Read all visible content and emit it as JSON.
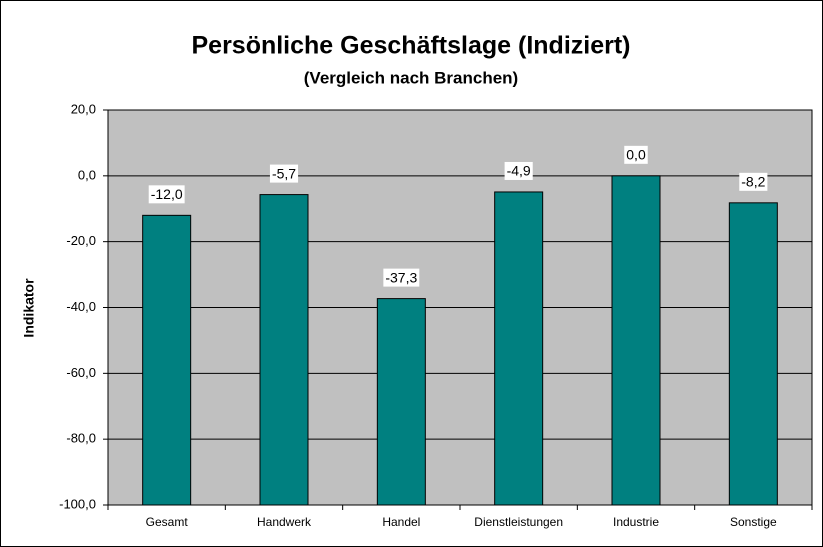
{
  "chart_data": {
    "type": "bar",
    "title": "Persönliche Geschäftslage (Indiziert)",
    "subtitle": "(Vergleich nach Branchen)",
    "y_label": "Indikator",
    "categories": [
      "Gesamt",
      "Handwerk",
      "Handel",
      "Dienstleistungen",
      "Industrie",
      "Sonstige"
    ],
    "values": [
      -12.0,
      -5.7,
      -37.3,
      -4.9,
      0.0,
      -8.2
    ],
    "value_labels": [
      "-12,0",
      "-5,7",
      "-37,3",
      "-4,9",
      "0,0",
      "-8,2"
    ],
    "color": "#008080",
    "ylim": [
      -100,
      20
    ],
    "yticks": [
      {
        "value": -100,
        "label": "-100,0"
      },
      {
        "value": -80,
        "label": "-80,0"
      },
      {
        "value": -60,
        "label": "-60,0"
      },
      {
        "value": -40,
        "label": "-40,0"
      },
      {
        "value": -20,
        "label": "-20,0"
      },
      {
        "value": 0,
        "label": "0,0"
      },
      {
        "value": 20,
        "label": "20,0"
      }
    ],
    "grid": true
  }
}
